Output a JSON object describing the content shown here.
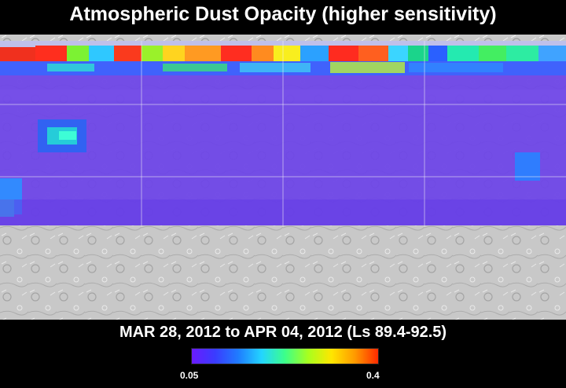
{
  "title": "Atmospheric Dust Opacity (higher sensitivity)",
  "date_range": "MAR 28, 2012 to APR 04, 2012 (Ls 89.4-92.5)",
  "colorbar": {
    "min_label": "0.05",
    "max_label": "0.4",
    "colors": [
      "#6a1bff",
      "#3a3cff",
      "#1f7dff",
      "#23d5ff",
      "#3cff8a",
      "#a8ff1e",
      "#ffe600",
      "#ff9a00",
      "#ff2a00"
    ]
  },
  "map": {
    "base_terrain_color": "#c8c8c8",
    "dust_overlay_colors": {
      "low": "#6a3ae8",
      "mid": "#3b7cff",
      "cyan": "#34dfe6",
      "green": "#2bd96a",
      "yellow": "#e9e21d",
      "orange": "#ff9b20",
      "red": "#f2301c"
    }
  }
}
